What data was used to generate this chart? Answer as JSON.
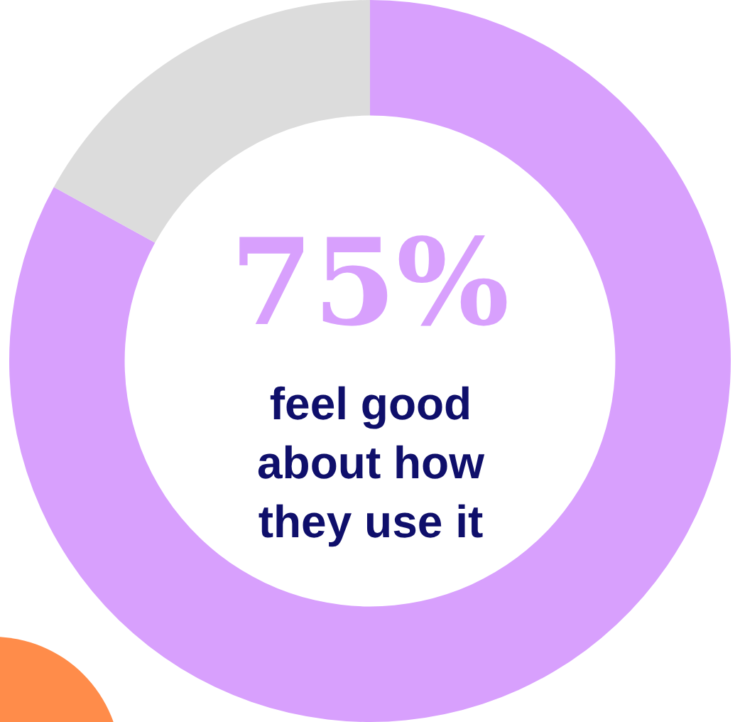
{
  "chart_data": {
    "type": "donut",
    "categories": [
      null,
      null
    ],
    "values": [
      83,
      17
    ],
    "colors": [
      "#d8a0fd",
      "#dcdcdc"
    ],
    "annotations": [
      "75%",
      "feel good about how they use it"
    ]
  }
}
